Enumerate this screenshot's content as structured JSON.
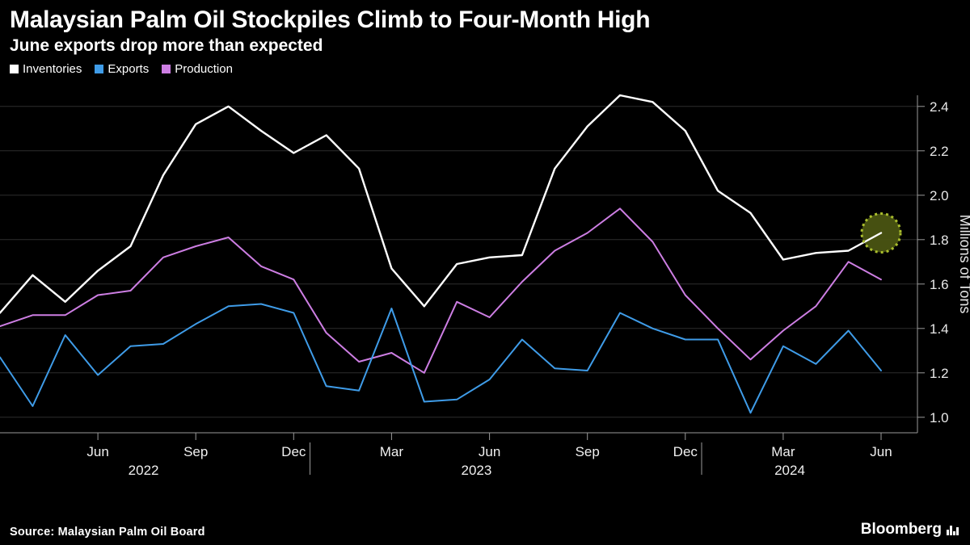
{
  "header": {
    "title": "Malaysian Palm Oil Stockpiles Climb to Four-Month High",
    "subtitle": "June exports drop more than expected"
  },
  "legend": {
    "items": [
      {
        "label": "Inventories",
        "color": "#ffffff"
      },
      {
        "label": "Exports",
        "color": "#3f9ce8"
      },
      {
        "label": "Production",
        "color": "#cd7ee3"
      }
    ]
  },
  "footer": {
    "source": "Source: Malaysian Palm Oil Board",
    "brand": "Bloomberg"
  },
  "chart_data": {
    "type": "line",
    "title": "Malaysian Palm Oil Stockpiles Climb to Four-Month High",
    "subtitle": "June exports drop more than expected",
    "ylabel": "Millions of Tons",
    "xlabel": "",
    "grid": true,
    "legend_position": "top-left",
    "background": "#000000",
    "ylim": [
      0.93,
      2.52
    ],
    "yticks": [
      1.0,
      1.2,
      1.4,
      1.6,
      1.8,
      2.0,
      2.2,
      2.4
    ],
    "months": [
      "Mar 2022",
      "Apr 2022",
      "May 2022",
      "Jun 2022",
      "Jul 2022",
      "Aug 2022",
      "Sep 2022",
      "Oct 2022",
      "Nov 2022",
      "Dec 2022",
      "Jan 2023",
      "Feb 2023",
      "Mar 2023",
      "Apr 2023",
      "May 2023",
      "Jun 2023",
      "Jul 2023",
      "Aug 2023",
      "Sep 2023",
      "Oct 2023",
      "Nov 2023",
      "Dec 2023",
      "Jan 2024",
      "Feb 2024",
      "Mar 2024",
      "Apr 2024",
      "May 2024",
      "Jun 2024"
    ],
    "series": [
      {
        "name": "Inventories",
        "color": "#ffffff",
        "values": [
          1.47,
          1.64,
          1.52,
          1.66,
          1.77,
          2.09,
          2.32,
          2.4,
          2.29,
          2.19,
          2.27,
          2.12,
          1.67,
          1.5,
          1.69,
          1.72,
          1.73,
          2.12,
          2.31,
          2.45,
          2.42,
          2.29,
          2.02,
          1.92,
          1.71,
          1.74,
          1.75,
          1.83
        ]
      },
      {
        "name": "Exports",
        "color": "#3f9ce8",
        "values": [
          1.27,
          1.05,
          1.37,
          1.19,
          1.32,
          1.33,
          1.42,
          1.5,
          1.51,
          1.47,
          1.14,
          1.12,
          1.49,
          1.07,
          1.08,
          1.17,
          1.35,
          1.22,
          1.21,
          1.47,
          1.4,
          1.35,
          1.35,
          1.02,
          1.32,
          1.24,
          1.39,
          1.21
        ]
      },
      {
        "name": "Production",
        "color": "#cd7ee3",
        "values": [
          1.41,
          1.46,
          1.46,
          1.55,
          1.57,
          1.72,
          1.77,
          1.81,
          1.68,
          1.62,
          1.38,
          1.25,
          1.29,
          1.2,
          1.52,
          1.45,
          1.61,
          1.75,
          1.83,
          1.94,
          1.79,
          1.55,
          1.4,
          1.26,
          1.39,
          1.5,
          1.7,
          1.62
        ]
      }
    ],
    "x_ticks": [
      {
        "label": "Jun",
        "index": 3
      },
      {
        "label": "Sep",
        "index": 6
      },
      {
        "label": "Dec",
        "index": 9
      },
      {
        "label": "Mar",
        "index": 12
      },
      {
        "label": "Jun",
        "index": 15
      },
      {
        "label": "Sep",
        "index": 18
      },
      {
        "label": "Dec",
        "index": 21
      },
      {
        "label": "Mar",
        "index": 24
      },
      {
        "label": "Jun",
        "index": 27
      }
    ],
    "year_labels": [
      {
        "label": "2022",
        "index": 4.4
      },
      {
        "label": "2023",
        "index": 14.6
      },
      {
        "label": "2024",
        "index": 24.2
      }
    ],
    "year_separators": [
      9.5,
      21.5
    ],
    "highlight": {
      "series": "Inventories",
      "index": 27,
      "value": 1.83,
      "fill": "#4a5412",
      "stroke": "#aabe2d"
    }
  }
}
